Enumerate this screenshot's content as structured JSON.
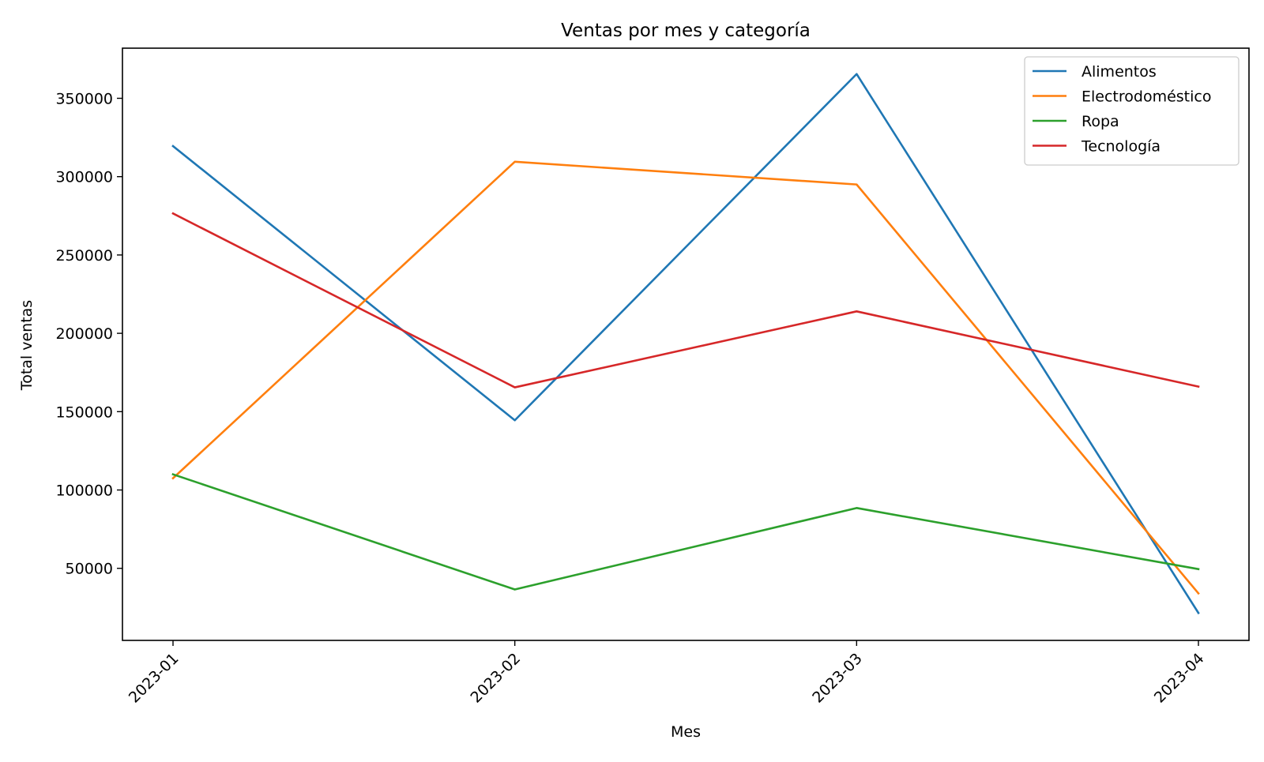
{
  "chart_data": {
    "type": "line",
    "title": "Ventas por mes y categoría",
    "xlabel": "Mes",
    "ylabel": "Total ventas",
    "categories": [
      "2023-01",
      "2023-02",
      "2023-03",
      "2023-04"
    ],
    "ylim": [
      4000,
      382000
    ],
    "yticks": [
      50000,
      100000,
      150000,
      200000,
      250000,
      300000,
      350000
    ],
    "grid": false,
    "legend_position": "top-right",
    "series": [
      {
        "name": "Alimentos",
        "color": "#1f77b4",
        "values": [
          319500,
          144500,
          365500,
          21500
        ]
      },
      {
        "name": "Electrodoméstico",
        "color": "#ff7f0e",
        "values": [
          107500,
          309500,
          295000,
          34000
        ]
      },
      {
        "name": "Ropa",
        "color": "#2ca02c",
        "values": [
          110000,
          36500,
          88500,
          49500
        ]
      },
      {
        "name": "Tecnología",
        "color": "#d62728",
        "values": [
          276500,
          165500,
          214000,
          166000
        ]
      }
    ]
  }
}
